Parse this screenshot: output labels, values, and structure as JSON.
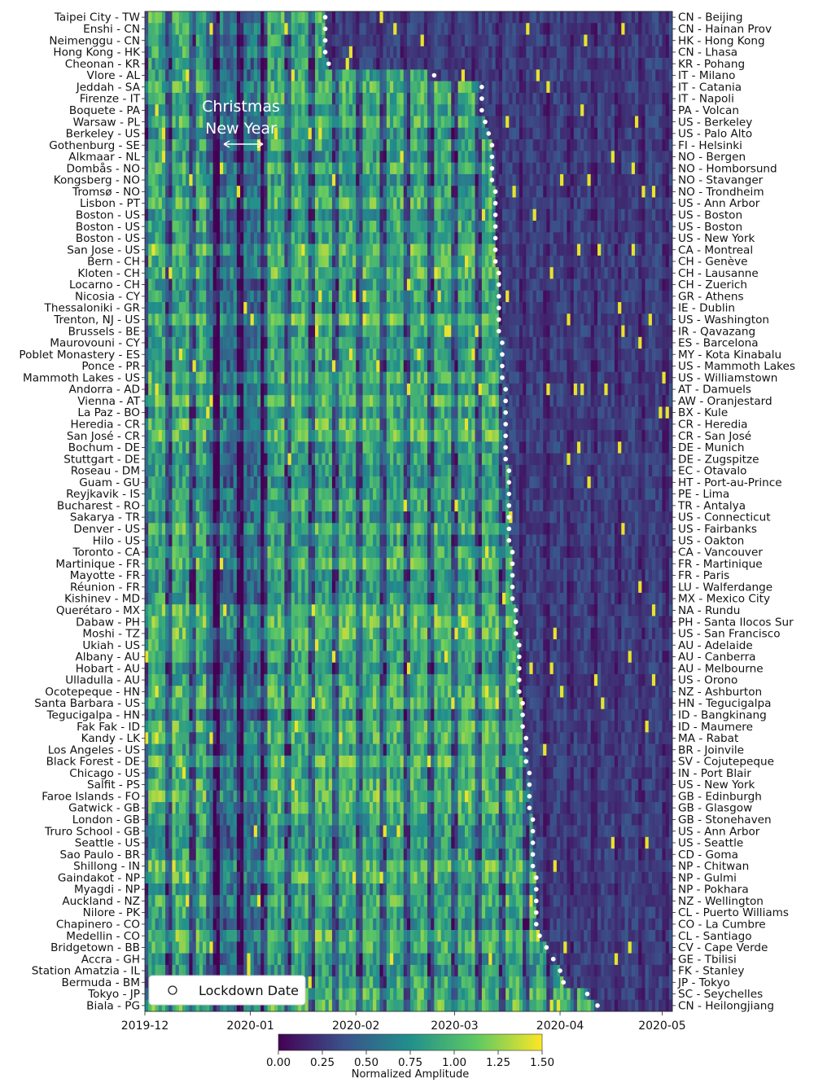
{
  "chart_data": {
    "type": "heatmap",
    "left_labels": [
      "Taipei City - TW",
      "Enshi - CN",
      "Neimenggu - CN",
      "Hong Kong - HK",
      "Cheonan - KR",
      "Vlore - AL",
      "Jeddah - SA",
      "Firenze - IT",
      "Boquete - PA",
      "Warsaw - PL",
      "Berkeley - US",
      "Gothenburg - SE",
      "Alkmaar - NL",
      "Dombås - NO",
      "Kongsberg - NO",
      "Tromsø - NO",
      "Lisbon - PT",
      "Boston - US",
      "Boston - US",
      "Boston - US",
      "San Jose - US",
      "Bern - CH",
      "Kloten - CH",
      "Locarno - CH",
      "Nicosia - CY",
      "Thessaloniki - GR",
      "Trenton, NJ - US",
      "Brussels - BE",
      "Maurovouni - CY",
      "Poblet Monastery - ES",
      "Ponce - PR",
      "Mammoth Lakes - US",
      "Andorra - AD",
      "Vienna - AT",
      "La Paz - BO",
      "Heredia - CR",
      "San José - CR",
      "Bochum - DE",
      "Stuttgart - DE",
      "Roseau - DM",
      "Guam - GU",
      "Reyjkavik - IS",
      "Bucharest - RO",
      "Sakarya - TR",
      "Denver - US",
      "Hilo - US",
      "Toronto - CA",
      "Martinique - FR",
      "Mayotte - FR",
      "Réunion - FR",
      "Kishinev - MD",
      "Querétaro - MX",
      "Dabaw - PH",
      "Moshi - TZ",
      "Ukiah - US",
      "Albany - AU",
      "Hobart - AU",
      "Ulladulla - AU",
      "Ocotepeque - HN",
      "Santa Barbara - US",
      "Tegucigalpa - HN",
      "Fak Fak - ID",
      "Kandy - LK",
      "Los Angeles - US",
      "Black Forest - DE",
      "Chicago - US",
      "Salfit - PS",
      "Faroe Islands - FO",
      "Gatwick - GB",
      "London - GB",
      "Truro School - GB",
      "Seattle - US",
      "Sao Paulo - BR",
      "Shillong - IN",
      "Gaindakot - NP",
      "Myagdi - NP",
      "Auckland - NZ",
      "Nilore - PK",
      "Chapinero - CO",
      "Medellin - CO",
      "Bridgetown - BB",
      "Accra - GH",
      "Station Amatzia - IL",
      "Bermuda - BM",
      "Tokyo - JP",
      "Biala - PG"
    ],
    "right_labels": [
      "CN - Beijing",
      "CN - Hainan Prov",
      "HK - Hong Kong",
      "CN - Lhasa",
      "KR - Pohang",
      "IT - Milano",
      "IT - Catania",
      "IT - Napoli",
      "PA - Volcan",
      "US - Berkeley",
      "US - Palo Alto",
      "FI - Helsinki",
      "NO - Bergen",
      "NO - Homborsund",
      "NO - Stavanger",
      "NO - Trondheim",
      "US - Ann Arbor",
      "US - Boston",
      "US - Boston",
      "US - New York",
      "CA - Montreal",
      "CH - Genève",
      "CH - Lausanne",
      "CH - Zuerich",
      "GR - Athens",
      "IE - Dublin",
      "US - Washington",
      "IR - Qavazang",
      "ES - Barcelona",
      "MY - Kota Kinabalu",
      "US - Mammoth Lakes",
      "US - Williamstown",
      "AT - Damuels",
      "AW - Oranjestard",
      "BX - Kule",
      "CR - Heredia",
      "CR - San José",
      "DE - Munich",
      "DE - Zugspitze",
      "EC - Otavalo",
      "HT - Port-au-Prince",
      "PE - Lima",
      "TR - Antalya",
      "US - Connecticut",
      "US - Fairbanks",
      "US - Oakton",
      "CA - Vancouver",
      "FR - Martinique",
      "FR - Paris",
      "LU - Walferdange",
      "MX - Mexico City",
      "NA - Rundu",
      "PH - Santa Ilocos Sur",
      "US - San Francisco",
      "AU - Adelaide",
      "AU - Canberra",
      "AU - Melbourne",
      "US - Orono",
      "NZ - Ashburton",
      "HN - Tegucigalpa",
      "ID - Bangkinang",
      "ID - Maumere",
      "MA - Rabat",
      "BR - Joinvile",
      "SV - Cojutepeque",
      "IN - Port Blair",
      "US - New York",
      "GB - Edinburgh",
      "GB - Glasgow",
      "GB - Stonehaven",
      "US - Ann Arbor",
      "US - Seattle",
      "CD - Goma",
      "NP - Chitwan",
      "NP - Gulmi",
      "NP - Pokhara",
      "NZ - Wellington",
      "CL - Puerto Williams",
      "CO - La Cumbre",
      "CL - Santiago",
      "CV - Cape Verde",
      "GE - Tbilisi",
      "FK - Stanley",
      "JP - Tokyo",
      "SC - Seychelles",
      "CN - Heilongjiang"
    ],
    "x_ticks": [
      "2019-12",
      "2020-01",
      "2020-02",
      "2020-03",
      "2020-04",
      "2020-05"
    ],
    "x_range": [
      "2019-12-01",
      "2020-05-04"
    ],
    "annotations": {
      "christmas": "Christmas",
      "new_year": "New Year"
    },
    "legend": {
      "label": "Lockdown Date",
      "position": "bottom-left"
    },
    "lockdown_dates": [
      "2020-01-23",
      "2020-01-23",
      "2020-01-23",
      "2020-01-23",
      "2020-01-24",
      "2020-02-24",
      "2020-03-09",
      "2020-03-09",
      "2020-03-09",
      "2020-03-10",
      "2020-03-11",
      "2020-03-12",
      "2020-03-12",
      "2020-03-12",
      "2020-03-12",
      "2020-03-13",
      "2020-03-13",
      "2020-03-13",
      "2020-03-13",
      "2020-03-13",
      "2020-03-13",
      "2020-03-13",
      "2020-03-14",
      "2020-03-14",
      "2020-03-14",
      "2020-03-14",
      "2020-03-14",
      "2020-03-14",
      "2020-03-15",
      "2020-03-15",
      "2020-03-15",
      "2020-03-15",
      "2020-03-16",
      "2020-03-16",
      "2020-03-16",
      "2020-03-16",
      "2020-03-16",
      "2020-03-16",
      "2020-03-16",
      "2020-03-17",
      "2020-03-17",
      "2020-03-17",
      "2020-03-17",
      "2020-03-17",
      "2020-03-17",
      "2020-03-17",
      "2020-03-18",
      "2020-03-18",
      "2020-03-18",
      "2020-03-18",
      "2020-03-18",
      "2020-03-19",
      "2020-03-19",
      "2020-03-19",
      "2020-03-20",
      "2020-03-20",
      "2020-03-20",
      "2020-03-20",
      "2020-03-20",
      "2020-03-21",
      "2020-03-21",
      "2020-03-21",
      "2020-03-22",
      "2020-03-22",
      "2020-03-22",
      "2020-03-23",
      "2020-03-23",
      "2020-03-23",
      "2020-03-23",
      "2020-03-24",
      "2020-03-24",
      "2020-03-24",
      "2020-03-24",
      "2020-03-24",
      "2020-03-25",
      "2020-03-25",
      "2020-03-25",
      "2020-03-25",
      "2020-03-25",
      "2020-03-26",
      "2020-03-28",
      "2020-03-30",
      "2020-04-01",
      "2020-04-02",
      "2020-04-09",
      "2020-04-12"
    ],
    "colorbar": {
      "label": "Normalized Amplitude",
      "range": [
        0,
        1.5
      ],
      "ticks": [
        "0.00",
        "0.25",
        "0.50",
        "0.75",
        "1.00",
        "1.25",
        "1.50"
      ],
      "colormap": "viridis",
      "colors": [
        "#440154",
        "#3b528b",
        "#21908c",
        "#5dc863",
        "#fde725"
      ]
    },
    "missing_data_color": "#ffffff"
  }
}
